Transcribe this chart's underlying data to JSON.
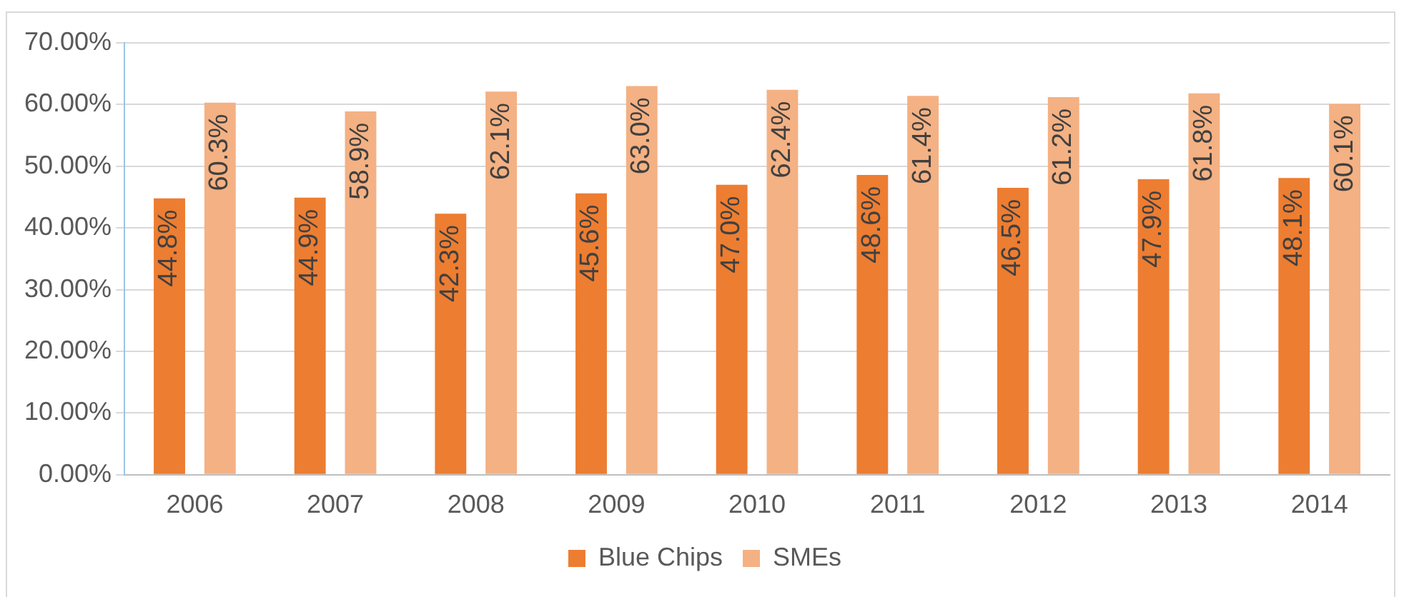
{
  "chart_data": {
    "type": "bar",
    "categories": [
      "2006",
      "2007",
      "2008",
      "2009",
      "2010",
      "2011",
      "2012",
      "2013",
      "2014"
    ],
    "series": [
      {
        "name": "Blue Chips",
        "color": "#ed7d31",
        "values": [
          44.8,
          44.9,
          42.3,
          45.6,
          47.0,
          48.6,
          46.5,
          47.9,
          48.1
        ],
        "value_labels": [
          "44.8%",
          "44.9%",
          "42.3%",
          "45.6%",
          "47.0%",
          "48.6%",
          "46.5%",
          "47.9%",
          "48.1%"
        ]
      },
      {
        "name": "SMEs",
        "color": "#f4b183",
        "values": [
          60.3,
          58.9,
          62.1,
          63.0,
          62.4,
          61.4,
          61.2,
          61.8,
          60.1
        ],
        "value_labels": [
          "60.3%",
          "58.9%",
          "62.1%",
          "63.0%",
          "62.4%",
          "61.4%",
          "61.2%",
          "61.8%",
          "60.1%"
        ]
      }
    ],
    "ylim": [
      0,
      70
    ],
    "yticks": [
      {
        "value": 0,
        "label": "0.00%"
      },
      {
        "value": 10,
        "label": "10.00%"
      },
      {
        "value": 20,
        "label": "20.00%"
      },
      {
        "value": 30,
        "label": "30.00%"
      },
      {
        "value": 40,
        "label": "40.00%"
      },
      {
        "value": 50,
        "label": "50.00%"
      },
      {
        "value": 60,
        "label": "60.00%"
      },
      {
        "value": 70,
        "label": "70.00%"
      }
    ],
    "grid": "y",
    "legend": "bottom"
  }
}
